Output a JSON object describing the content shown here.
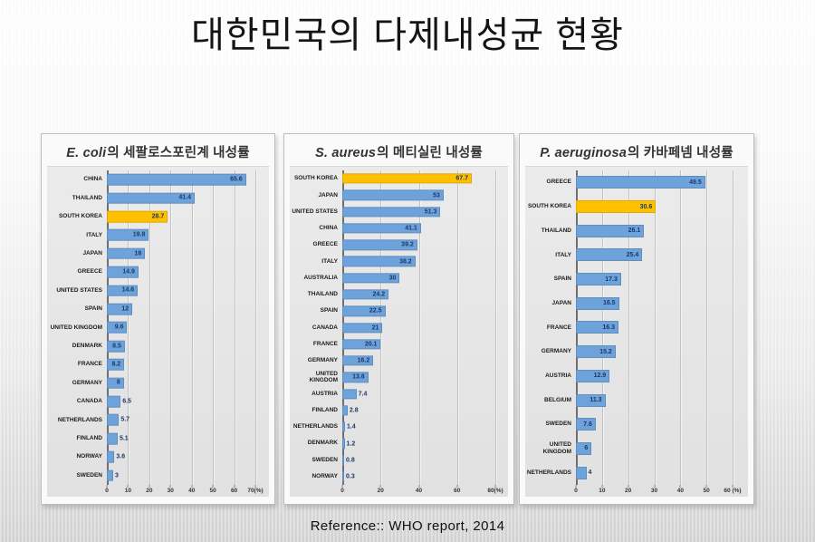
{
  "slide": {
    "title": "대한민국의 다제내성균 현황",
    "reference": "Reference:: WHO report, 2014"
  },
  "colors": {
    "bar_blue": "#6DA2DA",
    "bar_highlight": "#FFC000",
    "value_label": "#1F3864"
  },
  "chart_data": [
    {
      "type": "bar",
      "orientation": "horizontal",
      "title": "E. coli의 세팔로스포린계 내성률",
      "title_species": "E. coli",
      "title_rest": "의 세팔로스포린계 내성률",
      "xmax": 70,
      "ticks": [
        "0",
        "10",
        "20",
        "30",
        "40",
        "50",
        "60",
        "70(%)"
      ],
      "grid": true,
      "highlight_category": "SOUTH KOREA",
      "categories": [
        "CHINA",
        "THAILAND",
        "SOUTH KOREA",
        "ITALY",
        "JAPAN",
        "GREECE",
        "UNITED STATES",
        "SPAIN",
        "UNITED KINGDOM",
        "DENMARK",
        "FRANCE",
        "GERMANY",
        "CANADA",
        "NETHERLANDS",
        "FINLAND",
        "NORWAY",
        "SWEDEN"
      ],
      "values": [
        65.6,
        41.4,
        28.7,
        19.8,
        18,
        14.9,
        14.6,
        12,
        9.6,
        8.5,
        8.2,
        8,
        6.5,
        5.7,
        5.1,
        3.6,
        3
      ]
    },
    {
      "type": "bar",
      "orientation": "horizontal",
      "title": "S. aureus의 메티실린 내성률",
      "title_species": "S. aureus",
      "title_rest": "의 메티실린 내성률",
      "xmax": 80,
      "ticks": [
        "0",
        "20",
        "40",
        "60",
        "80(%)"
      ],
      "grid": true,
      "highlight_category": "SOUTH KOREA",
      "categories": [
        "SOUTH KOREA",
        "JAPAN",
        "UNITED STATES",
        "CHINA",
        "GREECE",
        "ITALY",
        "AUSTRALIA",
        "THAILAND",
        "SPAIN",
        "CANADA",
        "FRANCE",
        "GERMANY",
        "UNITED\nKINGDOM",
        "AUSTRIA",
        "FINLAND",
        "NETHERLANDS",
        "DENMARK",
        "SWEDEN",
        "NORWAY"
      ],
      "values": [
        67.7,
        53,
        51.3,
        41.1,
        39.2,
        38.2,
        30,
        24.2,
        22.5,
        21,
        20.1,
        16.2,
        13.6,
        7.4,
        2.8,
        1.4,
        1.2,
        0.8,
        0.3
      ]
    },
    {
      "type": "bar",
      "orientation": "horizontal",
      "title": "P. aeruginosa의 카바페넴 내성률",
      "title_species": "P. aeruginosa",
      "title_rest": "의 카바페넴 내성률",
      "xmax": 60,
      "ticks": [
        "0",
        "10",
        "20",
        "30",
        "40",
        "50",
        "60 (%)"
      ],
      "grid": true,
      "highlight_category": "SOUTH KOREA",
      "categories": [
        "GREECE",
        "SOUTH KOREA",
        "THAILAND",
        "ITALY",
        "SPAIN",
        "JAPAN",
        "FRANCE",
        "GERMANY",
        "AUSTRIA",
        "BELGIUM",
        "SWEDEN",
        "UNITED\nKINGDOM",
        "NETHERLANDS"
      ],
      "values": [
        49.5,
        30.6,
        26.1,
        25.4,
        17.3,
        16.5,
        16.3,
        15.2,
        12.9,
        11.3,
        7.6,
        6,
        4
      ]
    }
  ]
}
